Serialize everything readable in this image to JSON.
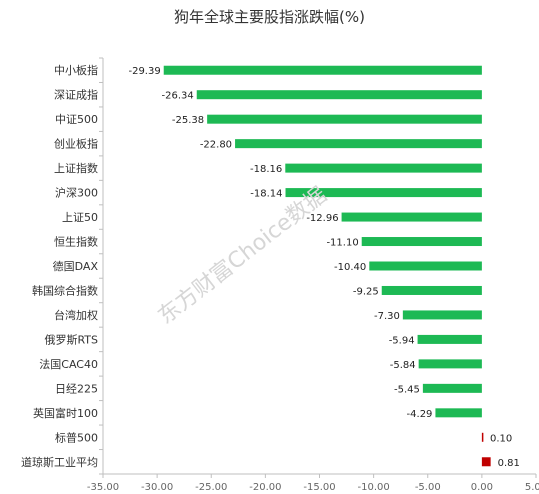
{
  "chart_data": {
    "type": "bar",
    "orientation": "horizontal",
    "title": "狗年全球主要股指涨跌幅(%)",
    "categories": [
      "中小板指",
      "深证成指",
      "中证500",
      "创业板指",
      "上证指数",
      "沪深300",
      "上证50",
      "恒生指数",
      "德国DAX",
      "韩国综合指数",
      "台湾加权",
      "俄罗斯RTS",
      "法国CAC40",
      "日经225",
      "英国富时100",
      "标普500",
      "道琼斯工业平均"
    ],
    "values": [
      -29.39,
      -26.34,
      -25.38,
      -22.8,
      -18.16,
      -18.14,
      -12.96,
      -11.1,
      -10.4,
      -9.25,
      -7.3,
      -5.94,
      -5.84,
      -5.45,
      -4.29,
      0.1,
      0.81
    ],
    "value_labels": [
      "-29.39",
      "-26.34",
      "-25.38",
      "-22.80",
      "-18.16",
      "-18.14",
      "-12.96",
      "-11.10",
      "-10.40",
      "-9.25",
      "-7.30",
      "-5.94",
      "-5.84",
      "-5.45",
      "-4.29",
      "0.10",
      "0.81"
    ],
    "xlim": [
      -35,
      5
    ],
    "xticks": [
      -35,
      -30,
      -25,
      -20,
      -15,
      -10,
      -5,
      0,
      5
    ],
    "xtick_labels": [
      "-35.00",
      "-30.00",
      "-25.00",
      "-20.00",
      "-15.00",
      "-10.00",
      "-5.00",
      "0.00",
      "5.00"
    ],
    "grid": false,
    "legend": "none",
    "colors": {
      "negative": "#1db954",
      "positive": "#c00000"
    }
  },
  "watermark": "东方财富Choice数据"
}
